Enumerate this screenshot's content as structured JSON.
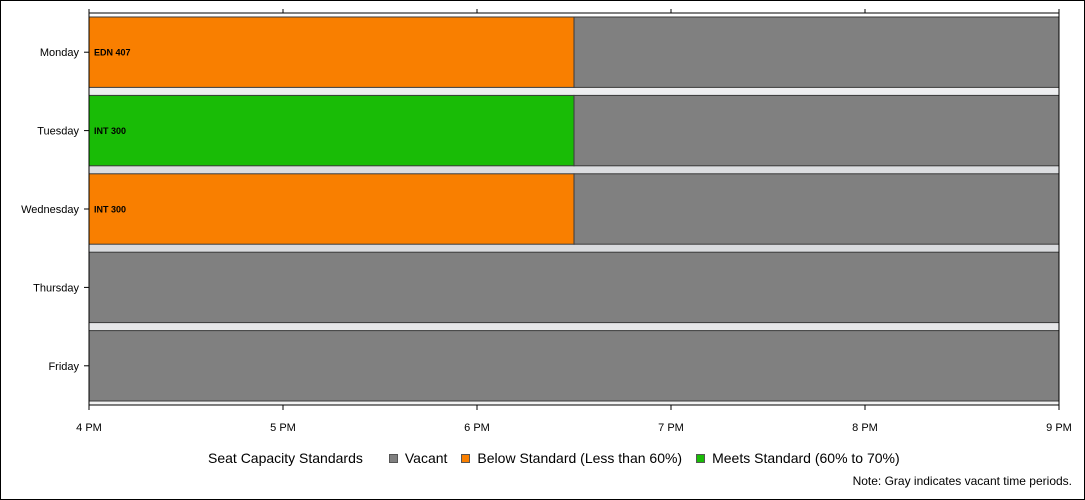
{
  "chart_data": {
    "type": "bar",
    "orientation": "horizontal",
    "stacked": true,
    "categories": [
      "Monday",
      "Tuesday",
      "Wednesday",
      "Thursday",
      "Friday"
    ],
    "x_ticks": [
      "4 PM",
      "5 PM",
      "6 PM",
      "7 PM",
      "8 PM",
      "9 PM"
    ],
    "xlim": [
      16,
      21
    ],
    "grid": false,
    "segments": [
      {
        "day": "Monday",
        "start": 16,
        "end": 18.5,
        "status": "Below Standard (Less than 60%)",
        "label": "EDN 407"
      },
      {
        "day": "Monday",
        "start": 18.5,
        "end": 21,
        "status": "Vacant",
        "label": ""
      },
      {
        "day": "Tuesday",
        "start": 16,
        "end": 18.5,
        "status": "Meets Standard (60% to 70%)",
        "label": "INT 300"
      },
      {
        "day": "Tuesday",
        "start": 18.5,
        "end": 21,
        "status": "Vacant",
        "label": ""
      },
      {
        "day": "Wednesday",
        "start": 16,
        "end": 18.5,
        "status": "Below Standard (Less than 60%)",
        "label": "INT 300"
      },
      {
        "day": "Wednesday",
        "start": 18.5,
        "end": 21,
        "status": "Vacant",
        "label": ""
      },
      {
        "day": "Thursday",
        "start": 16,
        "end": 21,
        "status": "Vacant",
        "label": ""
      },
      {
        "day": "Friday",
        "start": 16,
        "end": 21,
        "status": "Vacant",
        "label": ""
      }
    ],
    "legend": {
      "title": "Seat Capacity Standards",
      "position": "bottom",
      "entries": [
        {
          "name": "Vacant",
          "color": "#808080"
        },
        {
          "name": "Below Standard (Less than 60%)",
          "color": "#f97f00"
        },
        {
          "name": "Meets Standard (60% to 70%)",
          "color": "#19bc06"
        }
      ]
    },
    "note": "Note: Gray indicates vacant time periods."
  }
}
